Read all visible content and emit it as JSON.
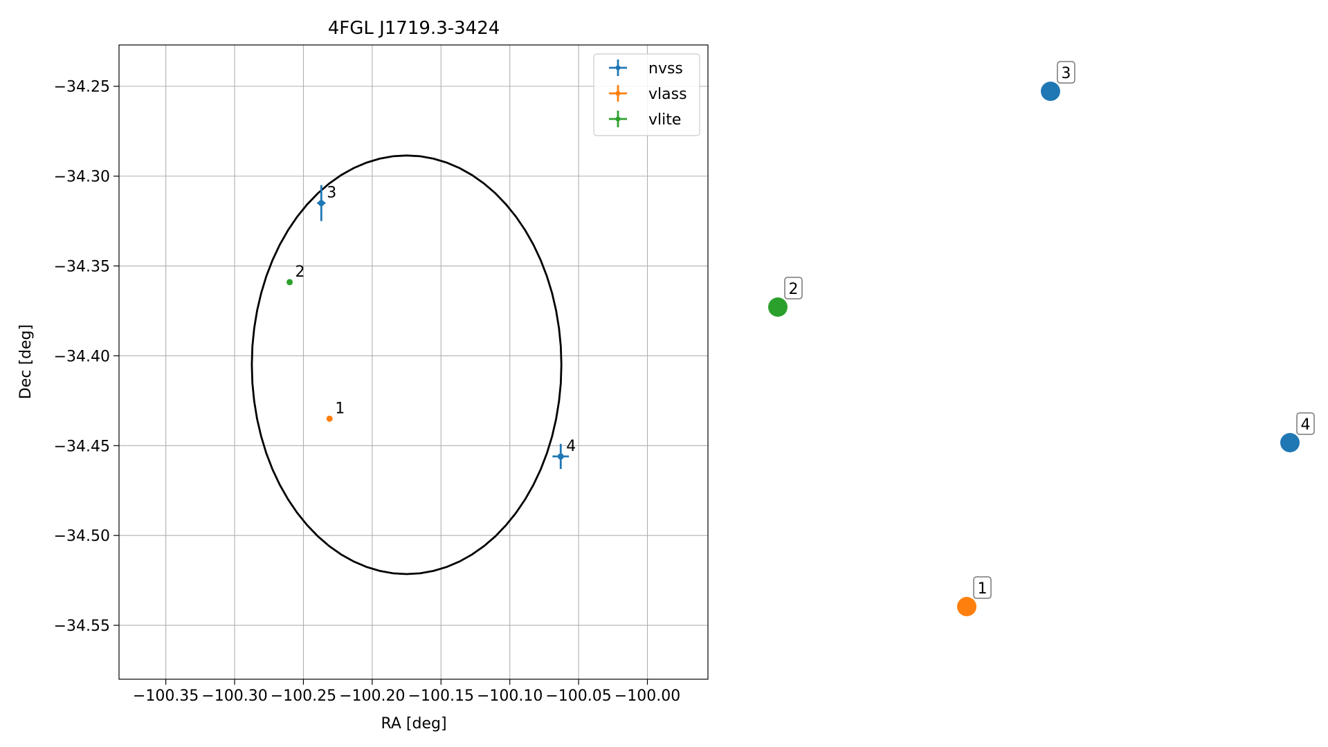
{
  "chart_data": [
    {
      "type": "scatter",
      "title": "4FGL J1719.3-3424",
      "xlabel": "RA [deg]",
      "ylabel": "Dec [deg]",
      "xlim": [
        -100.384,
        -99.956
      ],
      "ylim": [
        -34.58,
        -34.227
      ],
      "grid": true,
      "x_ticks": [
        -100.35,
        -100.3,
        -100.25,
        -100.2,
        -100.15,
        -100.1,
        -100.05,
        -100.0
      ],
      "x_tick_labels": [
        "−100.35",
        "−100.30",
        "−100.25",
        "−100.20",
        "−100.15",
        "−100.10",
        "−100.05",
        "−100.00"
      ],
      "y_ticks": [
        -34.25,
        -34.3,
        -34.35,
        -34.4,
        -34.45,
        -34.5,
        -34.55
      ],
      "y_tick_labels": [
        "−34.25",
        "−34.30",
        "−34.35",
        "−34.40",
        "−34.45",
        "−34.50",
        "−34.55"
      ],
      "legend": {
        "placement": "top-right",
        "entries": [
          "nvss",
          "vlass",
          "vlite"
        ]
      },
      "ellipse": {
        "center_ra": -100.175,
        "center_dec": -34.405,
        "semi_ra": 0.1125,
        "semi_dec": 0.1165,
        "color": "#000000"
      },
      "series": [
        {
          "name": "nvss",
          "color": "#1f77b4",
          "points": [
            {
              "label": "3",
              "ra": -100.237,
              "dec": -34.315,
              "ra_err": 0.003,
              "dec_err": 0.01
            },
            {
              "label": "4",
              "ra": -100.063,
              "dec": -34.456,
              "ra_err": 0.006,
              "dec_err": 0.007
            }
          ]
        },
        {
          "name": "vlass",
          "color": "#ff7f0e",
          "points": [
            {
              "label": "1",
              "ra": -100.231,
              "dec": -34.435,
              "ra_err": 0.0005,
              "dec_err": 0.0005
            }
          ]
        },
        {
          "name": "vlite",
          "color": "#2ca02c",
          "points": [
            {
              "label": "2",
              "ra": -100.26,
              "dec": -34.359,
              "ra_err": 0.0005,
              "dec_err": 0.0005
            }
          ]
        }
      ]
    },
    {
      "type": "scatter",
      "title": "",
      "axes_visible": false,
      "points": [
        {
          "label": "3",
          "color": "#1f77b4"
        },
        {
          "label": "2",
          "color": "#2ca02c"
        },
        {
          "label": "4",
          "color": "#1f77b4"
        },
        {
          "label": "1",
          "color": "#ff7f0e"
        }
      ]
    }
  ]
}
